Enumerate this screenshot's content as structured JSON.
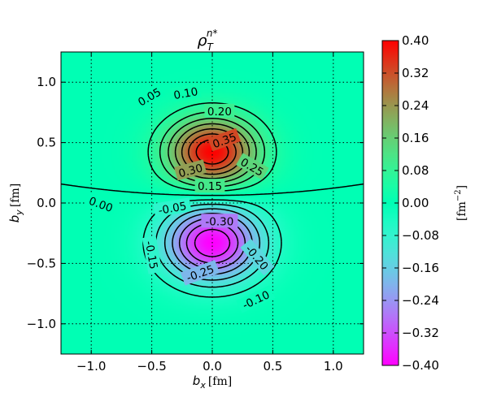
{
  "chart_data": {
    "type": "heatmap",
    "title_base": "ρ",
    "title_sub": "T",
    "title_sup": "n*",
    "xlabel_var": "b",
    "xlabel_sub": "x",
    "xlabel_unit": "[fm]",
    "ylabel_var": "b",
    "ylabel_sub": "y",
    "ylabel_unit": "[fm]",
    "xlim": [
      -1.25,
      1.25
    ],
    "ylim": [
      -1.25,
      1.25
    ],
    "xticks": [
      -1.0,
      -0.5,
      0.0,
      0.5,
      1.0
    ],
    "xtick_labels": [
      "−1.0",
      "−0.5",
      "0.0",
      "0.5",
      "1.0"
    ],
    "yticks": [
      -1.0,
      -0.5,
      0.0,
      0.5,
      1.0
    ],
    "ytick_labels": [
      "−1.0",
      "−0.5",
      "0.0",
      "0.5",
      "1.0"
    ],
    "grid": true,
    "colormap": "rainbow",
    "colorbar": {
      "min": -0.4,
      "max": 0.4,
      "ticks": [
        0.4,
        0.32,
        0.24,
        0.16,
        0.08,
        0.0,
        -0.08,
        -0.16,
        -0.24,
        -0.32,
        -0.4
      ],
      "tick_labels": [
        "0.40",
        "0.32",
        "0.24",
        "0.16",
        "0.08",
        "0.00",
        "−0.08",
        "−0.16",
        "−0.24",
        "−0.32",
        "−0.40"
      ],
      "label_unit": "[fm",
      "label_exp": "−2",
      "label_close": "]"
    },
    "field_model": {
      "positive_peak": {
        "x": 0.0,
        "y": 0.42,
        "amplitude": 0.4
      },
      "negative_peak": {
        "x": 0.0,
        "y": -0.33,
        "amplitude": -0.4
      }
    },
    "contour_levels": [
      -0.35,
      -0.3,
      -0.25,
      -0.2,
      -0.15,
      -0.1,
      -0.05,
      0.0,
      0.05,
      0.1,
      0.15,
      0.2,
      0.25,
      0.3,
      0.35
    ],
    "contour_labels": [
      {
        "text": "0.35",
        "x": 0.1,
        "y": 0.52,
        "angle": 20
      },
      {
        "text": "0.30",
        "x": -0.18,
        "y": 0.27,
        "angle": 15
      },
      {
        "text": "0.25",
        "x": 0.33,
        "y": 0.3,
        "angle": -30
      },
      {
        "text": "0.20",
        "x": 0.06,
        "y": 0.76,
        "angle": 0
      },
      {
        "text": "0.15",
        "x": -0.02,
        "y": 0.14,
        "angle": 0
      },
      {
        "text": "0.10",
        "x": -0.22,
        "y": 0.91,
        "angle": 10
      },
      {
        "text": "0.05",
        "x": -0.52,
        "y": 0.88,
        "angle": 30
      },
      {
        "text": "0.00",
        "x": -0.92,
        "y": -0.01,
        "angle": -20
      },
      {
        "text": "-0.05",
        "x": -0.33,
        "y": -0.04,
        "angle": 10
      },
      {
        "text": "-0.30",
        "x": 0.06,
        "y": -0.15,
        "angle": 0
      },
      {
        "text": "-0.20",
        "x": 0.37,
        "y": -0.45,
        "angle": -50
      },
      {
        "text": "-0.25",
        "x": -0.1,
        "y": -0.58,
        "angle": 20
      },
      {
        "text": "-0.15",
        "x": -0.5,
        "y": -0.43,
        "angle": -80
      },
      {
        "text": "-0.10",
        "x": 0.36,
        "y": -0.8,
        "angle": 25
      }
    ]
  }
}
